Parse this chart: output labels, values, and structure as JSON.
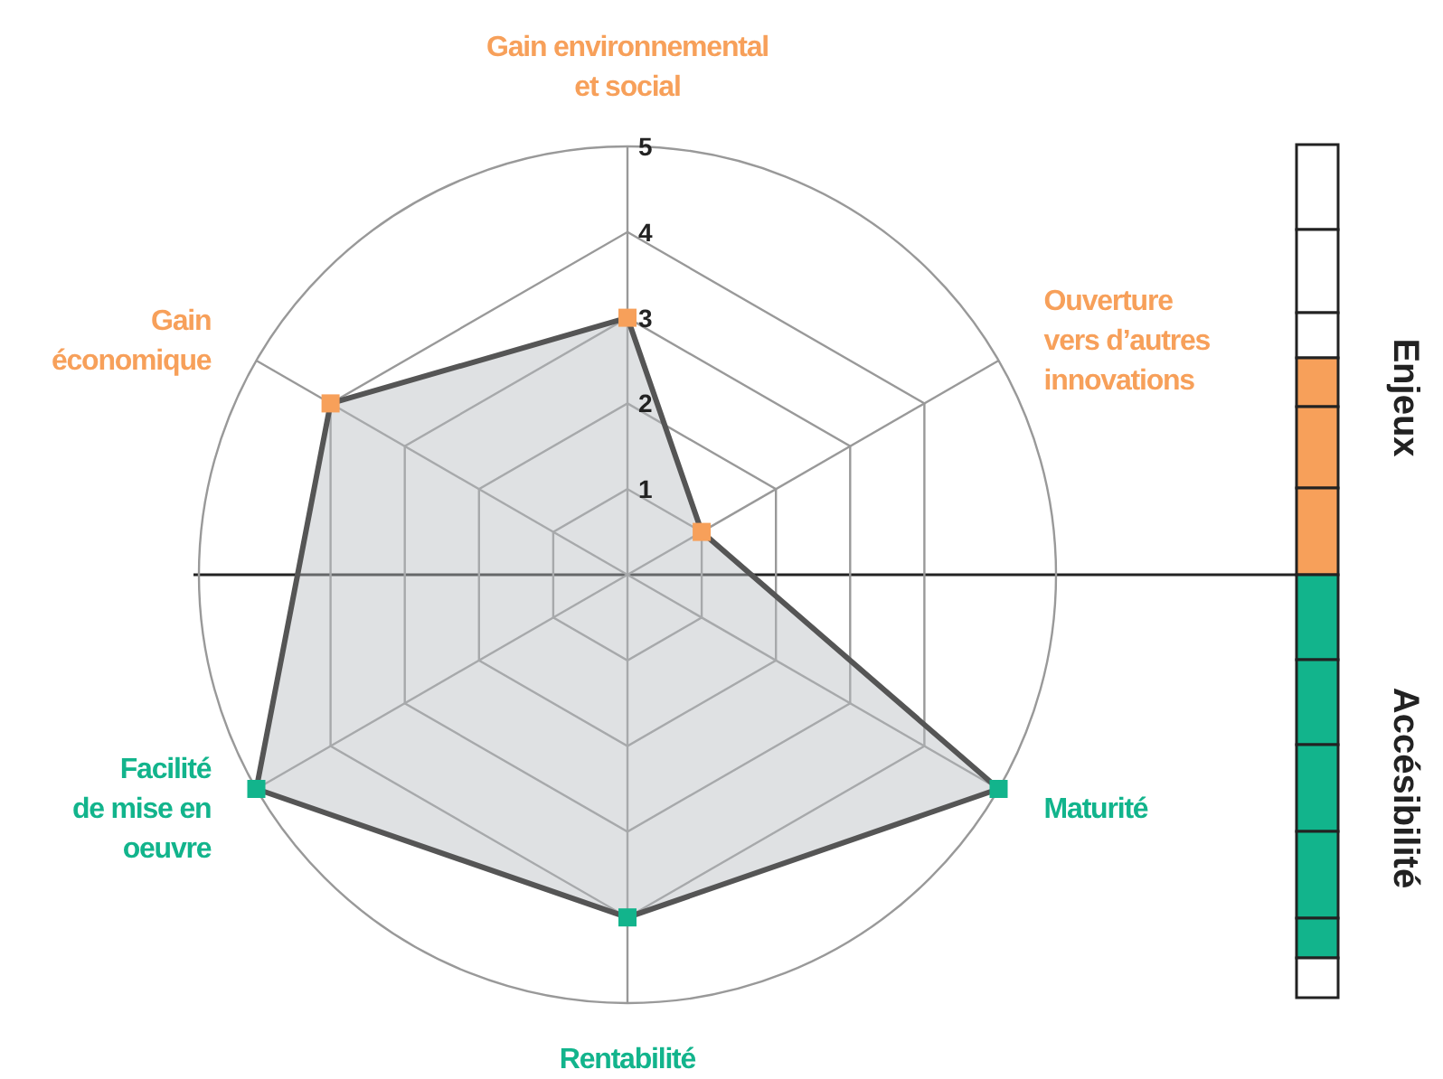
{
  "chart_data": {
    "type": "radar",
    "categories": [
      "Gain environnemental et social",
      "Ouverture vers d’autres innovations",
      "Maturité",
      "Rentabilité",
      "Facilité de mise en oeuvre",
      "Gain économique"
    ],
    "colors": [
      "#f7a05a",
      "#f7a05a",
      "#12b48c",
      "#12b48c",
      "#12b48c",
      "#f7a05a"
    ],
    "series": [
      {
        "color": "#555555",
        "values": [
          3,
          1,
          5,
          4,
          5,
          4
        ]
      }
    ],
    "ylim": [
      0,
      5
    ],
    "yticks": [
      1,
      2,
      3,
      4,
      5
    ],
    "marker": "square",
    "grid": true,
    "annotations": [
      "Enjeux",
      "Accésibilité"
    ]
  }
}
